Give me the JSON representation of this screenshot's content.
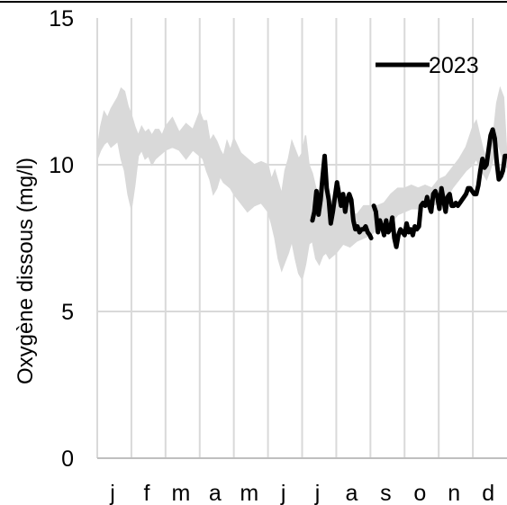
{
  "chart_data": {
    "type": "line",
    "title": "",
    "xlabel": "",
    "ylabel": "Oxygène dissous (mg/l)",
    "ylim": [
      0,
      15
    ],
    "yticks": [
      0,
      5,
      10,
      15
    ],
    "xlim": [
      0,
      12
    ],
    "month_labels": [
      "j",
      "f",
      "m",
      "a",
      "m",
      "j",
      "j",
      "a",
      "s",
      "o",
      "n",
      "d"
    ],
    "grid": true,
    "legend_position": "top-right",
    "colors": {
      "series_2023": "#000000",
      "envelope": "#d9d9d9",
      "grid": "#d9d9d9",
      "axis": "#bfbfbf"
    },
    "envelope": {
      "x": [
        0.0,
        0.1,
        0.2,
        0.3,
        0.4,
        0.5,
        0.6,
        0.7,
        0.8,
        0.9,
        1.0,
        1.1,
        1.2,
        1.3,
        1.4,
        1.5,
        1.6,
        1.7,
        1.8,
        1.9,
        2.0,
        2.2,
        2.4,
        2.6,
        2.8,
        3.0,
        3.1,
        3.2,
        3.3,
        3.4,
        3.5,
        3.6,
        3.7,
        3.8,
        3.9,
        4.0,
        4.2,
        4.4,
        4.6,
        4.8,
        5.0,
        5.1,
        5.2,
        5.3,
        5.4,
        5.5,
        5.6,
        5.7,
        5.8,
        5.9,
        6.0,
        6.1,
        6.2,
        6.3,
        6.4,
        6.5,
        6.6,
        6.7,
        6.8,
        6.9,
        7.0,
        7.2,
        7.4,
        7.6,
        7.8,
        8.0,
        8.2,
        8.4,
        8.6,
        8.8,
        9.0,
        9.2,
        9.4,
        9.6,
        9.8,
        10.0,
        10.2,
        10.4,
        10.6,
        10.8,
        11.0,
        11.1,
        11.2,
        11.3,
        11.4,
        11.5,
        11.6,
        11.7,
        11.8,
        11.9,
        12.0
      ],
      "upper": [
        10.5,
        11.3,
        11.8,
        11.6,
        11.9,
        12.1,
        12.3,
        12.6,
        12.5,
        12.0,
        11.7,
        11.3,
        11.0,
        11.3,
        11.1,
        11.2,
        11.0,
        11.2,
        11.2,
        11.0,
        11.3,
        11.6,
        11.1,
        11.4,
        11.2,
        11.8,
        11.5,
        11.5,
        10.8,
        11.0,
        10.8,
        10.5,
        10.3,
        10.8,
        10.5,
        10.9,
        10.4,
        10.2,
        10.0,
        10.1,
        10.0,
        9.5,
        9.8,
        9.4,
        9.0,
        9.8,
        10.2,
        10.8,
        10.5,
        10.2,
        10.4,
        11.0,
        10.0,
        9.7,
        9.2,
        9.0,
        9.4,
        8.8,
        8.6,
        8.8,
        8.8,
        8.8,
        8.4,
        8.3,
        8.6,
        8.6,
        8.6,
        8.7,
        9.0,
        9.2,
        9.2,
        9.3,
        9.2,
        9.3,
        9.2,
        9.5,
        9.6,
        9.9,
        10.2,
        10.6,
        11.3,
        11.5,
        11.0,
        10.5,
        10.2,
        10.5,
        11.0,
        12.1,
        12.6,
        12.3,
        10.2
      ],
      "lower": [
        10.2,
        10.5,
        10.7,
        10.8,
        10.6,
        10.7,
        10.8,
        10.2,
        9.8,
        9.0,
        8.5,
        9.3,
        10.3,
        10.5,
        10.2,
        10.3,
        10.0,
        10.2,
        10.3,
        10.4,
        10.5,
        10.6,
        10.5,
        10.2,
        10.5,
        10.3,
        10.2,
        9.8,
        9.5,
        9.0,
        9.2,
        9.6,
        9.4,
        9.3,
        9.2,
        9.0,
        8.7,
        8.4,
        8.6,
        8.7,
        8.4,
        8.0,
        7.5,
        6.8,
        6.4,
        6.7,
        7.0,
        7.4,
        6.8,
        6.3,
        6.1,
        6.6,
        7.3,
        7.4,
        6.8,
        6.6,
        6.9,
        7.0,
        6.8,
        6.9,
        7.0,
        7.3,
        7.2,
        7.4,
        7.5,
        7.6,
        7.8,
        7.7,
        8.0,
        8.3,
        8.4,
        8.5,
        8.5,
        8.6,
        8.6,
        8.7,
        8.8,
        9.2,
        9.5,
        9.8,
        10.0,
        10.2,
        9.9,
        9.7,
        9.5,
        9.8,
        10.2,
        10.8,
        10.5,
        10.0,
        9.9
      ]
    },
    "series": [
      {
        "name": "2023",
        "segments": [
          {
            "x": [
              6.3,
              6.36,
              6.42,
              6.48,
              6.54,
              6.6,
              6.66,
              6.72,
              6.78,
              6.84,
              6.9,
              6.96,
              7.02,
              7.08,
              7.14,
              7.2,
              7.26,
              7.32,
              7.38,
              7.44,
              7.5,
              7.56,
              7.62,
              7.68,
              7.74,
              7.8,
              7.86,
              7.92,
              7.98,
              8.02
            ],
            "y": [
              8.1,
              8.4,
              9.1,
              8.3,
              8.8,
              9.6,
              10.3,
              9.2,
              8.8,
              8.0,
              8.4,
              8.9,
              9.4,
              9.0,
              8.6,
              9.0,
              8.4,
              8.8,
              9.0,
              8.8,
              8.1,
              7.8,
              7.9,
              7.7,
              7.8,
              7.8,
              7.9,
              7.7,
              7.6,
              7.5
            ]
          },
          {
            "x": [
              8.1,
              8.16,
              8.22,
              8.28,
              8.34,
              8.4,
              8.46,
              8.52,
              8.58,
              8.64,
              8.7,
              8.76,
              8.82,
              8.88,
              8.94,
              9.0,
              9.06,
              9.12,
              9.18,
              9.24,
              9.3,
              9.36,
              9.42,
              9.48,
              9.54,
              9.6,
              9.66,
              9.72,
              9.78,
              9.84,
              9.9,
              9.96,
              10.02,
              10.08,
              10.14,
              10.2,
              10.26,
              10.32,
              10.38,
              10.44,
              10.5,
              10.56,
              10.62,
              10.68,
              10.74,
              10.8,
              10.86,
              10.92,
              10.98,
              11.04,
              11.1,
              11.16,
              11.22,
              11.28,
              11.34,
              11.4,
              11.46,
              11.52,
              11.58,
              11.64,
              11.7,
              11.76,
              11.82,
              11.88,
              11.94,
              12.0
            ],
            "y": [
              8.6,
              8.4,
              7.7,
              8.1,
              7.9,
              7.6,
              8.1,
              7.7,
              7.8,
              8.2,
              7.5,
              7.2,
              7.6,
              7.8,
              7.7,
              7.6,
              8.0,
              7.7,
              7.8,
              7.6,
              7.9,
              7.8,
              7.9,
              8.6,
              8.7,
              8.6,
              8.9,
              8.6,
              8.4,
              9.0,
              9.1,
              8.9,
              8.5,
              9.2,
              8.8,
              8.4,
              8.9,
              9.0,
              8.6,
              8.6,
              8.7,
              8.6,
              8.7,
              8.8,
              8.9,
              9.0,
              9.2,
              9.2,
              9.1,
              9.0,
              9.0,
              9.3,
              9.8,
              10.2,
              9.9,
              10.0,
              10.5,
              11.0,
              11.2,
              10.9,
              10.1,
              9.5,
              9.6,
              9.8,
              10.3,
              10.3
            ]
          }
        ]
      }
    ],
    "legend_label": "2023"
  }
}
